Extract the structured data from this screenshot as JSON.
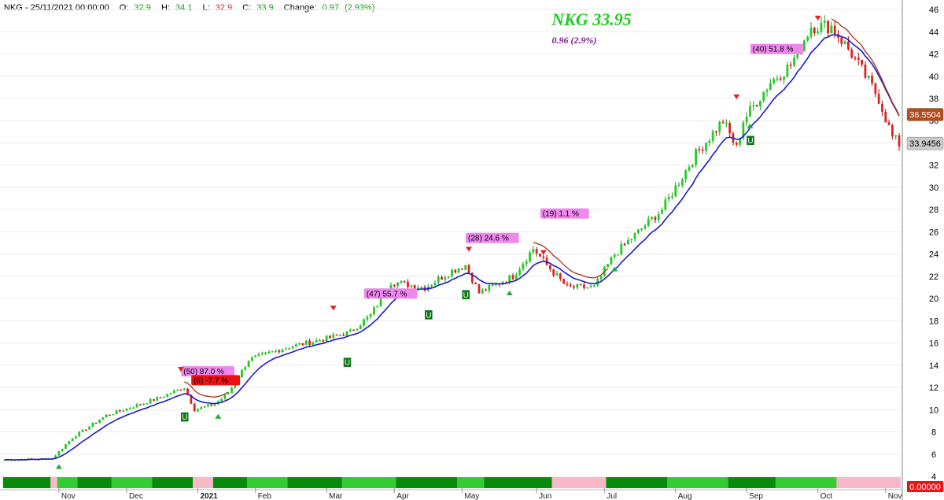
{
  "header": {
    "symbol_date": "NKG - 25/11/2021 00:00:00",
    "open_label": "O:",
    "open": "32.9",
    "high_label": "H:",
    "high": "34.1",
    "low_label": "L:",
    "low": "32.9",
    "close_label": "C:",
    "close": "33.9",
    "change_label": "Change:",
    "change": "0.97",
    "change_pct": "(2.93%)"
  },
  "title": {
    "main": "NKG 33.95",
    "sub": "0.96  (2.9%)"
  },
  "colors": {
    "up": "#22cc22",
    "down": "#dd2222",
    "ema_fast": "#1a1acc",
    "ema_slow": "#aa3311",
    "annotation_bg": "#ee88ee",
    "band_dark": "#0a8a0a",
    "band_light": "#33cc33",
    "band_pink": "#f8b8c8"
  },
  "chart_data": {
    "type": "candlestick",
    "ylim": [
      4,
      46.5
    ],
    "yticks": [
      4,
      6,
      8,
      10,
      12,
      14,
      16,
      18,
      20,
      22,
      24,
      26,
      28,
      30,
      32,
      34,
      36,
      38,
      40,
      42,
      44,
      46
    ],
    "months": [
      "Nov",
      "Dec",
      "2021",
      "Feb",
      "Mar",
      "Apr",
      "May",
      "Jun",
      "Jul",
      "Aug",
      "Sep",
      "Oct",
      "Nov"
    ],
    "anchors": [
      {
        "w": 0,
        "v": 5.5
      },
      {
        "w": 14,
        "v": 5.6
      },
      {
        "w": 20,
        "v": 7.5
      },
      {
        "w": 30,
        "v": 9.5
      },
      {
        "w": 45,
        "v": 11
      },
      {
        "w": 53,
        "v": 12
      },
      {
        "w": 56,
        "v": 10
      },
      {
        "w": 62,
        "v": 10.5
      },
      {
        "w": 66,
        "v": 11.5
      },
      {
        "w": 72,
        "v": 14.5
      },
      {
        "w": 82,
        "v": 15.5
      },
      {
        "w": 96,
        "v": 16.5
      },
      {
        "w": 102,
        "v": 17
      },
      {
        "w": 108,
        "v": 18.5
      },
      {
        "w": 114,
        "v": 21.5
      },
      {
        "w": 124,
        "v": 21
      },
      {
        "w": 132,
        "v": 22.5
      },
      {
        "w": 136,
        "v": 23
      },
      {
        "w": 140,
        "v": 20.5
      },
      {
        "w": 150,
        "v": 22
      },
      {
        "w": 156,
        "v": 24.5
      },
      {
        "w": 160,
        "v": 23
      },
      {
        "w": 166,
        "v": 21
      },
      {
        "w": 174,
        "v": 21
      },
      {
        "w": 180,
        "v": 24
      },
      {
        "w": 194,
        "v": 28
      },
      {
        "w": 204,
        "v": 33
      },
      {
        "w": 212,
        "v": 36
      },
      {
        "w": 216,
        "v": 33.5
      },
      {
        "w": 218,
        "v": 36
      },
      {
        "w": 226,
        "v": 39.5
      },
      {
        "w": 232,
        "v": 41
      },
      {
        "w": 238,
        "v": 44.5
      },
      {
        "w": 244,
        "v": 44.5
      },
      {
        "w": 250,
        "v": 42
      },
      {
        "w": 254,
        "v": 40
      },
      {
        "w": 258,
        "v": 38
      },
      {
        "w": 262,
        "v": 34.5
      },
      {
        "w": 264,
        "v": 33.9
      }
    ],
    "last_price": "33.9456",
    "ema_slow_value": "36.5504",
    "bottom_value": "0.00000",
    "annotations": [
      {
        "text": "(50) 87.0 %",
        "type": "pct"
      },
      {
        "text": "(6) -7.7 %",
        "type": "neg"
      },
      {
        "text": "(47) 55.7 %",
        "type": "pct"
      },
      {
        "text": "(28) 24.6 %",
        "type": "pct"
      },
      {
        "text": "(19) 1.1 %",
        "type": "pct"
      },
      {
        "text": "(40) 51.8 %",
        "type": "pct"
      }
    ],
    "signal_label": "U"
  }
}
